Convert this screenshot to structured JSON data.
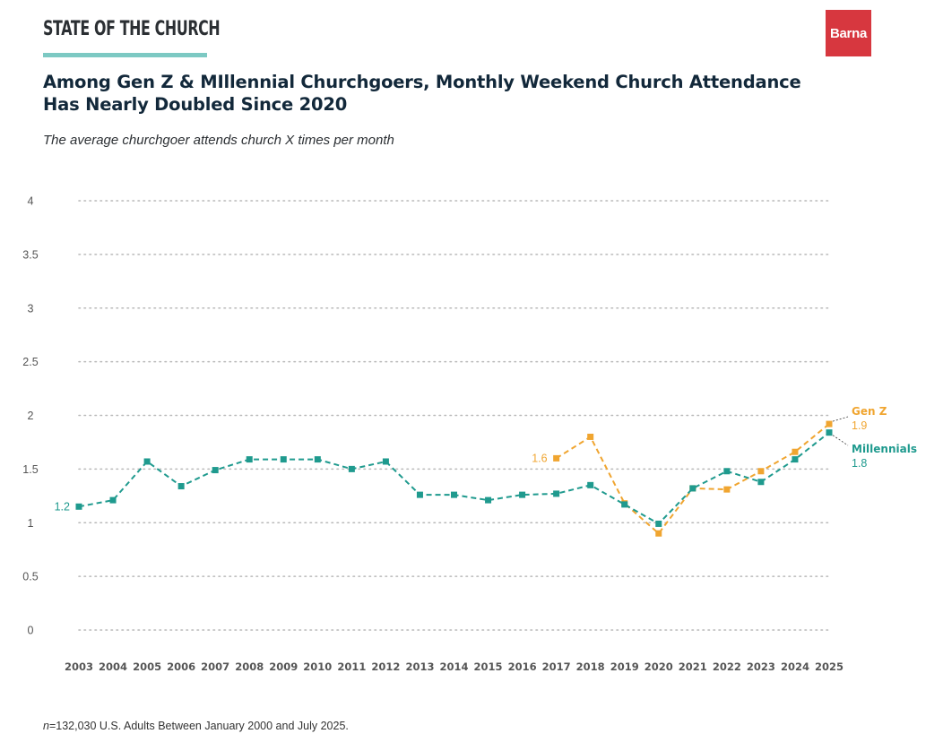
{
  "header": {
    "brand_title": "STATE OF THE CHURCH",
    "logo_text": "Barna",
    "headline_line1": "Among Gen Z & MIllennial Churchgoers, Monthly Weekend Church Attendance",
    "headline_line2": "Has Nearly Doubled Since 2020",
    "subtitle": "The average churchgoer attends church X times per month"
  },
  "footnote": {
    "n_label": "n",
    "text": "=132,030 U.S. Adults Between January 2000 and July 2025."
  },
  "colors": {
    "millennials": "#1f9a8e",
    "genz": "#f0a530",
    "grid": "#b9b9b9",
    "tick_text": "#555555"
  },
  "chart_data": {
    "type": "line",
    "title": "Among Gen Z & MIllennial Churchgoers, Monthly Weekend Church Attendance Has Nearly Doubled Since 2020",
    "xlabel": "",
    "ylabel": "",
    "ylim": [
      0,
      4
    ],
    "yticks": [
      "0",
      "0.5",
      "1",
      "1.5",
      "2",
      "2.5",
      "3",
      "3.5",
      "4"
    ],
    "grid": true,
    "categories": [
      "2003",
      "2004",
      "2005",
      "2006",
      "2007",
      "2008",
      "2009",
      "2010",
      "2011",
      "2012",
      "2013",
      "2014",
      "2015",
      "2016",
      "2017",
      "2018",
      "2019",
      "2020",
      "2021",
      "2022",
      "2023",
      "2024",
      "2025"
    ],
    "series": [
      {
        "name": "Millennials",
        "label_value": "1.8",
        "start_label": "1.2",
        "values": [
          1.15,
          1.21,
          1.57,
          1.34,
          1.49,
          1.59,
          1.59,
          1.59,
          1.5,
          1.57,
          1.26,
          1.26,
          1.21,
          1.26,
          1.27,
          1.35,
          1.17,
          0.99,
          1.32,
          1.48,
          1.38,
          1.59,
          1.84
        ]
      },
      {
        "name": "Gen Z",
        "label_value": "1.9",
        "start_label": "1.6",
        "values": [
          null,
          null,
          null,
          null,
          null,
          null,
          null,
          null,
          null,
          null,
          null,
          null,
          null,
          null,
          1.6,
          1.8,
          1.18,
          0.9,
          1.32,
          1.31,
          1.48,
          1.66,
          1.92
        ]
      }
    ]
  }
}
